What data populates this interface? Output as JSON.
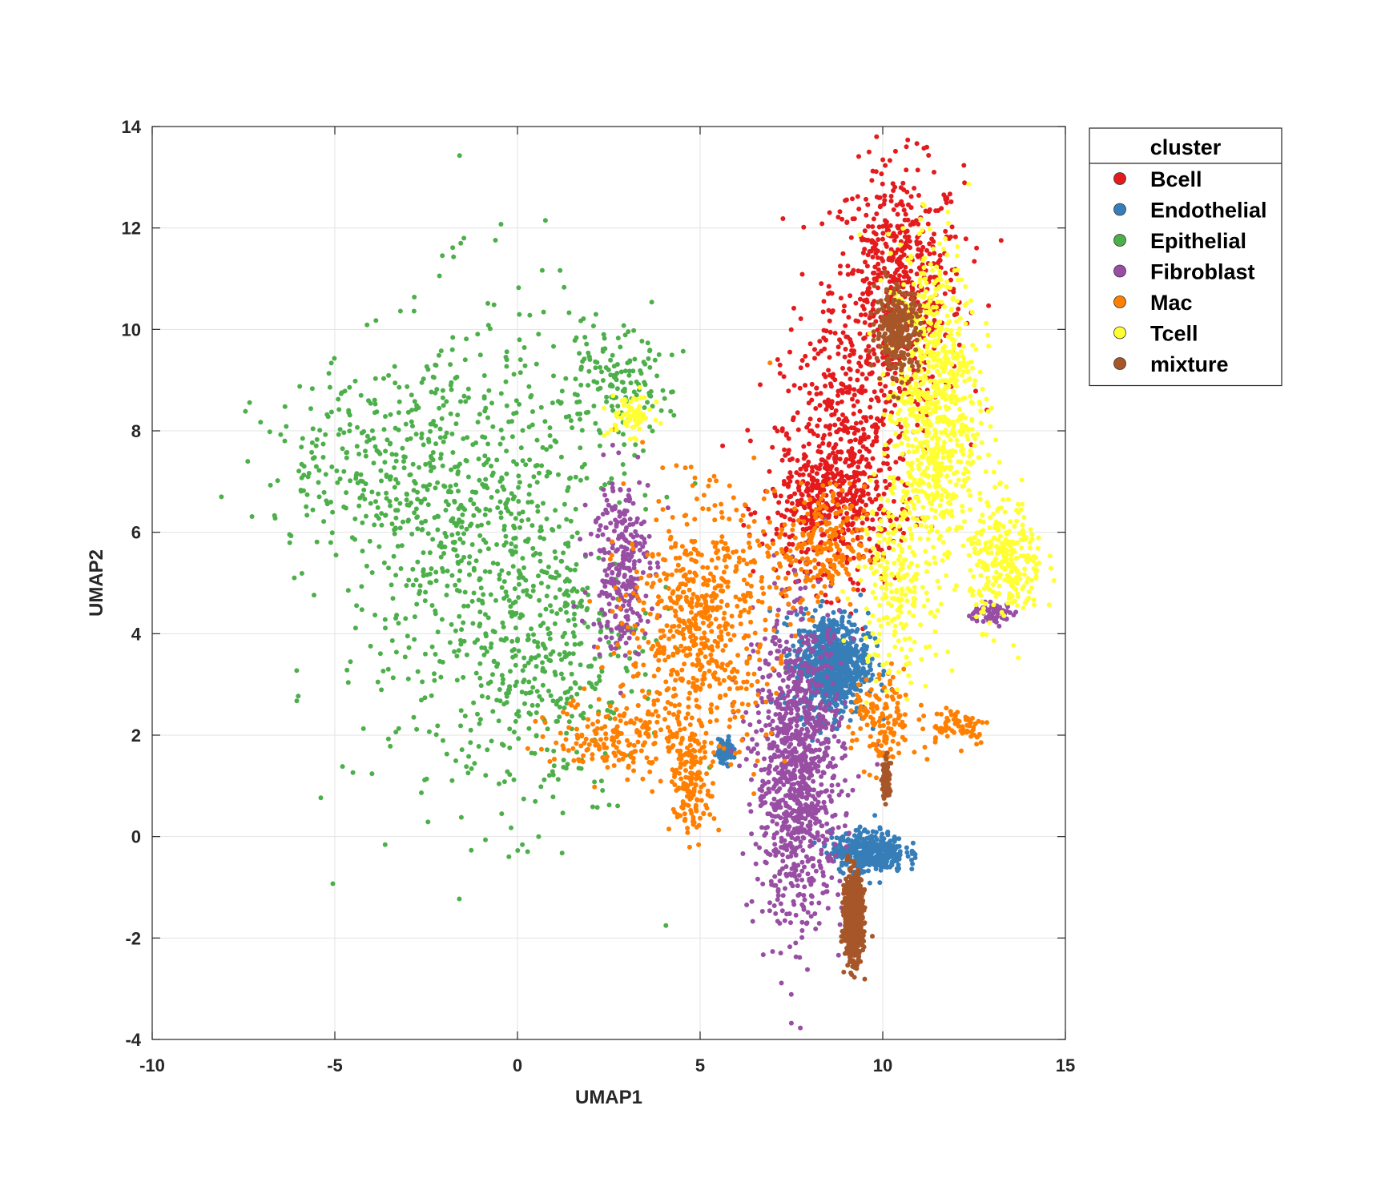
{
  "chart_data": {
    "type": "scatter",
    "title": "",
    "xlabel": "UMAP1",
    "ylabel": "UMAP2",
    "xlim": [
      -10,
      15
    ],
    "ylim": [
      -4,
      14
    ],
    "xticks": [
      -10,
      -5,
      0,
      5,
      10,
      15
    ],
    "yticks": [
      -4,
      -2,
      0,
      2,
      4,
      6,
      8,
      10,
      12,
      14
    ],
    "grid": true,
    "legend": {
      "title": "cluster",
      "placement": "outside-top-right"
    },
    "series": [
      {
        "name": "Bcell",
        "color": "#e41a1c",
        "regions": [
          {
            "center": [
              10.4,
              10.8
            ],
            "spread": [
              0.9,
              1.2
            ],
            "share": 0.45
          },
          {
            "center": [
              9.0,
              7.5
            ],
            "spread": [
              0.9,
              1.3
            ],
            "share": 0.35
          },
          {
            "center": [
              8.3,
              6.5
            ],
            "spread": [
              0.8,
              0.6
            ],
            "share": 0.2
          }
        ]
      },
      {
        "name": "Endothelial",
        "color": "#377eb8",
        "regions": [
          {
            "center": [
              8.6,
              3.4
            ],
            "spread": [
              0.5,
              0.5
            ],
            "share": 0.6
          },
          {
            "center": [
              9.6,
              -0.3
            ],
            "spread": [
              0.5,
              0.2
            ],
            "share": 0.3
          },
          {
            "center": [
              5.7,
              1.7
            ],
            "spread": [
              0.1,
              0.1
            ],
            "share": 0.1
          }
        ]
      },
      {
        "name": "Epithelial",
        "color": "#4daf4a",
        "regions": [
          {
            "center": [
              -0.8,
              5.5
            ],
            "spread": [
              1.9,
              2.4
            ],
            "share": 0.55
          },
          {
            "center": [
              -3.5,
              7.3
            ],
            "spread": [
              1.8,
              0.9
            ],
            "share": 0.2
          },
          {
            "center": [
              1.0,
              3.2
            ],
            "spread": [
              1.1,
              1.2
            ],
            "share": 0.15
          },
          {
            "center": [
              2.6,
              8.9
            ],
            "spread": [
              0.8,
              0.5
            ],
            "share": 0.1
          }
        ]
      },
      {
        "name": "Fibroblast",
        "color": "#984ea3",
        "regions": [
          {
            "center": [
              7.7,
              1.3
            ],
            "spread": [
              0.6,
              1.5
            ],
            "share": 0.75
          },
          {
            "center": [
              2.8,
              5.4
            ],
            "spread": [
              0.4,
              0.9
            ],
            "share": 0.2
          },
          {
            "center": [
              13.0,
              4.4
            ],
            "spread": [
              0.3,
              0.1
            ],
            "share": 0.05
          }
        ]
      },
      {
        "name": "Mac",
        "color": "#ff7f00",
        "regions": [
          {
            "center": [
              5.0,
              4.2
            ],
            "spread": [
              1.0,
              1.2
            ],
            "share": 0.45
          },
          {
            "center": [
              3.0,
              2.0
            ],
            "spread": [
              1.0,
              0.4
            ],
            "share": 0.15
          },
          {
            "center": [
              4.8,
              1.0
            ],
            "spread": [
              0.3,
              0.5
            ],
            "share": 0.1
          },
          {
            "center": [
              10.0,
              2.2
            ],
            "spread": [
              0.4,
              0.5
            ],
            "share": 0.1
          },
          {
            "center": [
              8.3,
              5.7
            ],
            "spread": [
              0.6,
              0.6
            ],
            "share": 0.15
          },
          {
            "center": [
              12.0,
              2.2
            ],
            "spread": [
              0.5,
              0.2
            ],
            "share": 0.05
          }
        ]
      },
      {
        "name": "Tcell",
        "color": "#ffff33",
        "regions": [
          {
            "center": [
              11.4,
              8.5
            ],
            "spread": [
              0.6,
              1.6
            ],
            "share": 0.6
          },
          {
            "center": [
              13.4,
              5.4
            ],
            "spread": [
              0.5,
              0.6
            ],
            "share": 0.2
          },
          {
            "center": [
              10.3,
              5.0
            ],
            "spread": [
              0.5,
              1.0
            ],
            "share": 0.15
          },
          {
            "center": [
              3.1,
              8.3
            ],
            "spread": [
              0.3,
              0.2
            ],
            "share": 0.05
          }
        ]
      },
      {
        "name": "mixture",
        "color": "#a65628",
        "regions": [
          {
            "center": [
              9.2,
              -1.6
            ],
            "spread": [
              0.12,
              0.4
            ],
            "share": 0.7
          },
          {
            "center": [
              10.4,
              10.0
            ],
            "spread": [
              0.3,
              0.4
            ],
            "share": 0.2
          },
          {
            "center": [
              10.1,
              1.1
            ],
            "spread": [
              0.05,
              0.2
            ],
            "share": 0.1
          }
        ]
      }
    ]
  }
}
